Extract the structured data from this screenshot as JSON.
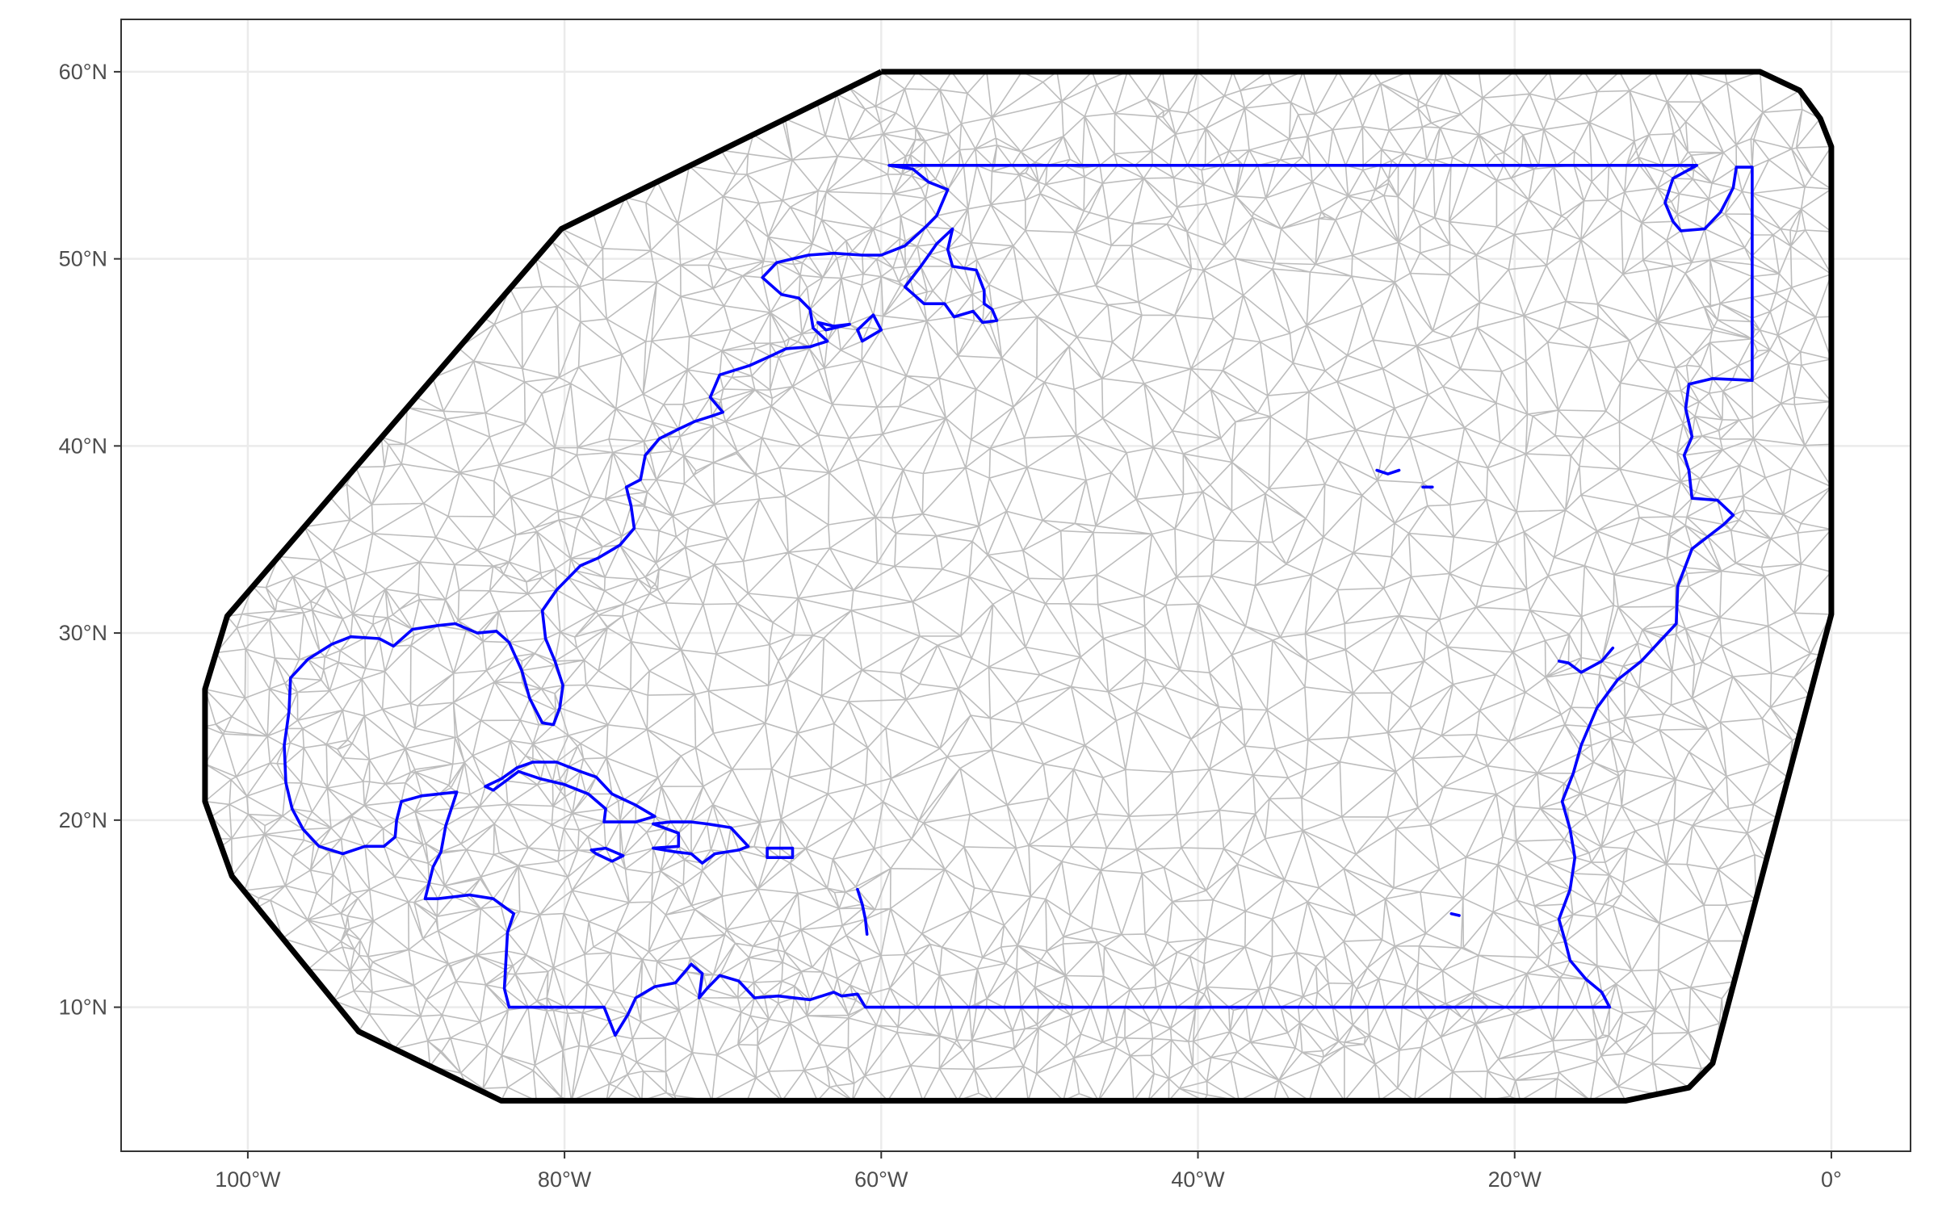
{
  "map": {
    "x_axis": {
      "ticks": [
        {
          "value": -100,
          "label": "100°W"
        },
        {
          "value": -80,
          "label": "80°W"
        },
        {
          "value": -60,
          "label": "60°W"
        },
        {
          "value": -40,
          "label": "40°W"
        },
        {
          "value": -20,
          "label": "20°W"
        },
        {
          "value": 0,
          "label": "0°"
        }
      ],
      "range": [
        -108,
        5
      ]
    },
    "y_axis": {
      "ticks": [
        {
          "value": 10,
          "label": "10°N"
        },
        {
          "value": 20,
          "label": "20°N"
        },
        {
          "value": 30,
          "label": "30°N"
        },
        {
          "value": 40,
          "label": "40°N"
        },
        {
          "value": 50,
          "label": "50°N"
        },
        {
          "value": 60,
          "label": "60°N"
        }
      ],
      "range": [
        2.3,
        62.8
      ]
    },
    "colors": {
      "mesh": "#bdbdbd",
      "boundary": "#000000",
      "coastline": "#0000ff",
      "grid": "#ebebeb"
    },
    "mesh_outer_boundary": [
      [
        -60,
        60
      ],
      [
        -4.5,
        60
      ],
      [
        -2,
        59
      ],
      [
        -0.7,
        57.5
      ],
      [
        0,
        56
      ],
      [
        0,
        31
      ],
      [
        -7.5,
        7
      ],
      [
        -9,
        5.7
      ],
      [
        -13,
        5
      ],
      [
        -84,
        5
      ],
      [
        -93,
        8.7
      ],
      [
        -101,
        17
      ],
      [
        -102.7,
        21
      ],
      [
        -102.7,
        27
      ],
      [
        -101.3,
        30.9
      ],
      [
        -80.2,
        51.6
      ],
      [
        -60,
        60
      ]
    ],
    "coastline_mask": [
      [
        -59.5,
        55
      ],
      [
        -8.5,
        55
      ],
      [
        -10,
        54.3
      ],
      [
        -10.5,
        53
      ],
      [
        -10,
        52
      ],
      [
        -9.5,
        51.5
      ],
      [
        -8,
        51.6
      ],
      [
        -7,
        52.5
      ],
      [
        -6.2,
        53.8
      ],
      [
        -6,
        54.9
      ],
      [
        -5,
        54.9
      ],
      [
        -5,
        53.5
      ],
      [
        -5,
        43.5
      ],
      [
        -7.5,
        43.6
      ],
      [
        -9,
        43.3
      ],
      [
        -9.2,
        42
      ],
      [
        -8.8,
        40.5
      ],
      [
        -9.3,
        39.5
      ],
      [
        -9,
        38.7
      ],
      [
        -8.8,
        37.2
      ],
      [
        -7.2,
        37.1
      ],
      [
        -6.2,
        36.3
      ],
      [
        -6.8,
        35.8
      ],
      [
        -8.8,
        34.5
      ],
      [
        -9.7,
        32.5
      ],
      [
        -9.8,
        30.5
      ],
      [
        -12,
        28.5
      ],
      [
        -13.5,
        27.5
      ],
      [
        -14.8,
        26
      ],
      [
        -15.8,
        24
      ],
      [
        -16.3,
        22.5
      ],
      [
        -17,
        21
      ],
      [
        -16.5,
        19.5
      ],
      [
        -16.2,
        18
      ],
      [
        -16.5,
        16.3
      ],
      [
        -17.2,
        14.7
      ],
      [
        -16.8,
        13.5
      ],
      [
        -16.5,
        12.5
      ],
      [
        -15.5,
        11.5
      ],
      [
        -14.5,
        10.8
      ],
      [
        -14,
        10
      ],
      [
        -61,
        10
      ],
      [
        -61.5,
        10.7
      ],
      [
        -62.5,
        10.6
      ],
      [
        -63,
        10.8
      ],
      [
        -64.5,
        10.4
      ],
      [
        -66.5,
        10.6
      ],
      [
        -68,
        10.5
      ],
      [
        -69,
        11.4
      ],
      [
        -70.2,
        11.7
      ],
      [
        -71,
        11
      ],
      [
        -71.5,
        10.5
      ],
      [
        -71.3,
        11.8
      ],
      [
        -72,
        12.3
      ],
      [
        -73,
        11.3
      ],
      [
        -74.3,
        11.1
      ],
      [
        -75.5,
        10.5
      ],
      [
        -76,
        9.6
      ],
      [
        -76.8,
        8.5
      ],
      [
        -77.5,
        10
      ],
      [
        -83.5,
        10
      ],
      [
        -83.8,
        11
      ],
      [
        -83.6,
        14
      ],
      [
        -83.2,
        15
      ],
      [
        -84.5,
        15.8
      ],
      [
        -86,
        16
      ],
      [
        -88,
        15.8
      ],
      [
        -88.8,
        15.8
      ],
      [
        -88.3,
        17.5
      ],
      [
        -87.8,
        18.3
      ],
      [
        -87.5,
        19.7
      ],
      [
        -86.8,
        21.5
      ],
      [
        -89,
        21.3
      ],
      [
        -90.3,
        21
      ],
      [
        -90.6,
        20
      ],
      [
        -90.7,
        19.1
      ],
      [
        -91.4,
        18.6
      ],
      [
        -92.6,
        18.6
      ],
      [
        -94,
        18.2
      ],
      [
        -95.5,
        18.6
      ],
      [
        -96.5,
        19.5
      ],
      [
        -97.2,
        20.6
      ],
      [
        -97.6,
        22
      ],
      [
        -97.7,
        24
      ],
      [
        -97.4,
        25.8
      ],
      [
        -97.3,
        27.6
      ],
      [
        -96.2,
        28.6
      ],
      [
        -94.7,
        29.4
      ],
      [
        -93.5,
        29.8
      ],
      [
        -91.7,
        29.7
      ],
      [
        -90.8,
        29.3
      ],
      [
        -89.6,
        30.2
      ],
      [
        -88,
        30.4
      ],
      [
        -86.9,
        30.5
      ],
      [
        -85.5,
        30
      ],
      [
        -84.3,
        30.1
      ],
      [
        -83.5,
        29.5
      ],
      [
        -82.7,
        28
      ],
      [
        -82.2,
        26.5
      ],
      [
        -81.4,
        25.2
      ],
      [
        -80.7,
        25.1
      ],
      [
        -80.3,
        26
      ],
      [
        -80.1,
        27.2
      ],
      [
        -80.6,
        28.5
      ],
      [
        -81.2,
        29.7
      ],
      [
        -81.4,
        31.2
      ],
      [
        -80.5,
        32.3
      ],
      [
        -79,
        33.6
      ],
      [
        -77.9,
        34
      ],
      [
        -76.5,
        34.7
      ],
      [
        -75.6,
        35.6
      ],
      [
        -75.8,
        36.8
      ],
      [
        -76.1,
        37.8
      ],
      [
        -75.2,
        38.2
      ],
      [
        -74.9,
        39.5
      ],
      [
        -74,
        40.4
      ],
      [
        -72.8,
        40.9
      ],
      [
        -71.8,
        41.3
      ],
      [
        -70.7,
        41.6
      ],
      [
        -70,
        41.8
      ],
      [
        -70.8,
        42.6
      ],
      [
        -70.2,
        43.8
      ],
      [
        -68.3,
        44.3
      ],
      [
        -67,
        44.8
      ],
      [
        -66,
        45.2
      ],
      [
        -64.5,
        45.3
      ],
      [
        -63.4,
        45.6
      ],
      [
        -64.3,
        46.3
      ],
      [
        -64.5,
        47.3
      ],
      [
        -65.2,
        47.9
      ],
      [
        -66.3,
        48.1
      ],
      [
        -67.5,
        49
      ],
      [
        -66.6,
        49.8
      ],
      [
        -64.6,
        50.2
      ],
      [
        -63,
        50.3
      ],
      [
        -61.2,
        50.2
      ],
      [
        -60,
        50.2
      ],
      [
        -58.5,
        50.7
      ],
      [
        -57.2,
        51.7
      ],
      [
        -56.5,
        52.3
      ],
      [
        -55.8,
        53.7
      ],
      [
        -57,
        54.1
      ],
      [
        -58,
        54.8
      ],
      [
        -59.5,
        55
      ]
    ],
    "coastline_islands": [
      [
        [
          -85,
          21.8
        ],
        [
          -84,
          22.2
        ],
        [
          -83,
          22.8
        ],
        [
          -82,
          23.1
        ],
        [
          -80.5,
          23.1
        ],
        [
          -79,
          22.6
        ],
        [
          -78,
          22.3
        ],
        [
          -77,
          21.4
        ],
        [
          -75.5,
          20.8
        ],
        [
          -74.3,
          20.2
        ],
        [
          -75.5,
          19.9
        ],
        [
          -77.5,
          19.9
        ],
        [
          -77.4,
          20.6
        ],
        [
          -78.5,
          21.4
        ],
        [
          -80,
          21.9
        ],
        [
          -81.5,
          22.2
        ],
        [
          -82.9,
          22.6
        ],
        [
          -84.5,
          21.6
        ],
        [
          -85,
          21.8
        ]
      ],
      [
        [
          -74.4,
          19.8
        ],
        [
          -73.3,
          19.9
        ],
        [
          -72,
          19.9
        ],
        [
          -71,
          19.8
        ],
        [
          -69.5,
          19.6
        ],
        [
          -68.4,
          18.6
        ],
        [
          -69,
          18.4
        ],
        [
          -70.5,
          18.2
        ],
        [
          -71.3,
          17.7
        ],
        [
          -72,
          18.2
        ],
        [
          -73,
          18.3
        ],
        [
          -74.4,
          18.5
        ],
        [
          -72.8,
          18.6
        ],
        [
          -72.8,
          19.3
        ],
        [
          -74.4,
          19.8
        ]
      ],
      [
        [
          -78.3,
          18.4
        ],
        [
          -77.4,
          18.5
        ],
        [
          -76.3,
          18.1
        ],
        [
          -77,
          17.8
        ],
        [
          -78,
          18.2
        ],
        [
          -78.3,
          18.4
        ]
      ],
      [
        [
          -67.2,
          18.5
        ],
        [
          -65.6,
          18.5
        ],
        [
          -65.6,
          18
        ],
        [
          -67.2,
          18
        ],
        [
          -67.2,
          18.5
        ]
      ],
      [
        [
          -53.5,
          47.6
        ],
        [
          -53,
          47.3
        ],
        [
          -52.7,
          46.7
        ],
        [
          -53.6,
          46.6
        ],
        [
          -54.2,
          47.2
        ],
        [
          -55.4,
          46.9
        ],
        [
          -56,
          47.6
        ],
        [
          -57.3,
          47.6
        ],
        [
          -58.5,
          48.5
        ],
        [
          -57.5,
          49.6
        ],
        [
          -56.5,
          50.8
        ],
        [
          -55.5,
          51.6
        ],
        [
          -55.8,
          50.5
        ],
        [
          -55.5,
          49.6
        ],
        [
          -54,
          49.4
        ],
        [
          -53.5,
          48.3
        ],
        [
          -53.5,
          47.6
        ]
      ],
      [
        [
          -61.2,
          45.6
        ],
        [
          -60,
          46.2
        ],
        [
          -60.5,
          47
        ],
        [
          -61.5,
          46.2
        ],
        [
          -61.2,
          45.6
        ]
      ],
      [
        [
          -64,
          46.6
        ],
        [
          -63,
          46.4
        ],
        [
          -62,
          46.5
        ],
        [
          -63.5,
          46.2
        ],
        [
          -64,
          46.6
        ]
      ],
      [
        [
          -28.7,
          38.7
        ],
        [
          -28,
          38.5
        ],
        [
          -27.3,
          38.7
        ]
      ],
      [
        [
          -25.8,
          37.8
        ],
        [
          -25.2,
          37.8
        ]
      ],
      [
        [
          -17.2,
          28.5
        ],
        [
          -16.6,
          28.4
        ],
        [
          -15.8,
          27.9
        ],
        [
          -14.5,
          28.5
        ],
        [
          -13.8,
          29.2
        ]
      ],
      [
        [
          -24,
          15
        ],
        [
          -23.5,
          14.9
        ]
      ],
      [
        [
          -61.5,
          16.3
        ],
        [
          -61.2,
          15.5
        ],
        [
          -61,
          14.7
        ],
        [
          -60.9,
          13.9
        ]
      ]
    ]
  }
}
